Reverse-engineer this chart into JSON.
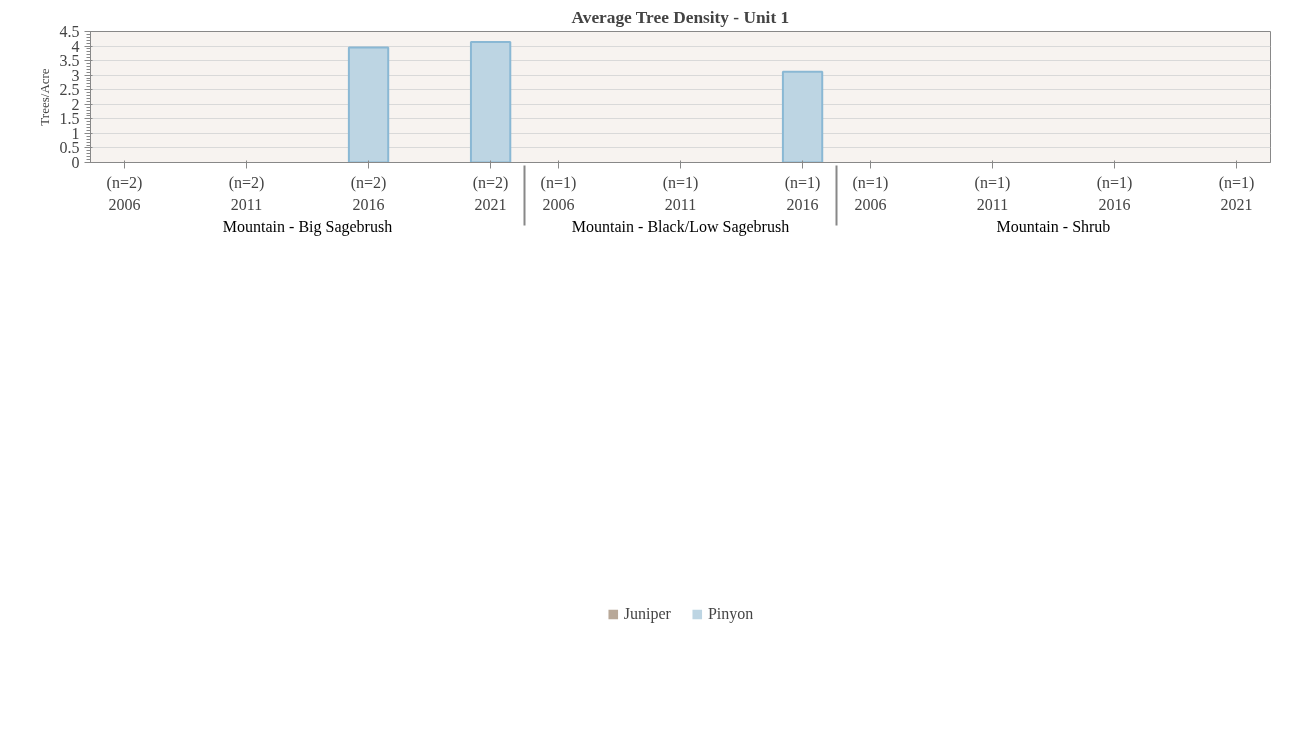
{
  "chart_data": {
    "type": "bar",
    "title": "Average Tree Density - Unit 1",
    "ylabel": "Trees/Acre",
    "categories": [
      "(n=2)\n2006",
      "(n=2)\n2011",
      "(n=2)\n2016",
      "(n=2)\n2021",
      "(n=1)\n2006",
      "(n=1)\n2011",
      "(n=1)\n2016",
      "(n=1)\n2006",
      "(n=1)\n2011",
      "(n=1)\n2016",
      "(n=1)\n2021"
    ],
    "annotations": [
      "Mountain - Big Sagebrush",
      "Mountain - Black/Low Sagebrush",
      "Mountain - Shrub"
    ],
    "series": [
      {
        "name": "Juniper",
        "color": "#b8a898",
        "values": [
          0,
          0,
          0,
          0,
          0,
          0,
          0,
          0,
          0,
          0,
          0
        ]
      },
      {
        "name": "Pinyon",
        "color": "#bdd5e3",
        "values": [
          0,
          0,
          3.95,
          4.14,
          0,
          0,
          3.12,
          0,
          0,
          0,
          0
        ]
      }
    ],
    "ylim": [
      0,
      4.5
    ],
    "yticks": [
      0,
      0.5,
      1,
      1.5,
      2,
      2.5,
      3,
      3.5,
      4,
      4.5
    ],
    "grid": "y",
    "legend": "bottom"
  }
}
